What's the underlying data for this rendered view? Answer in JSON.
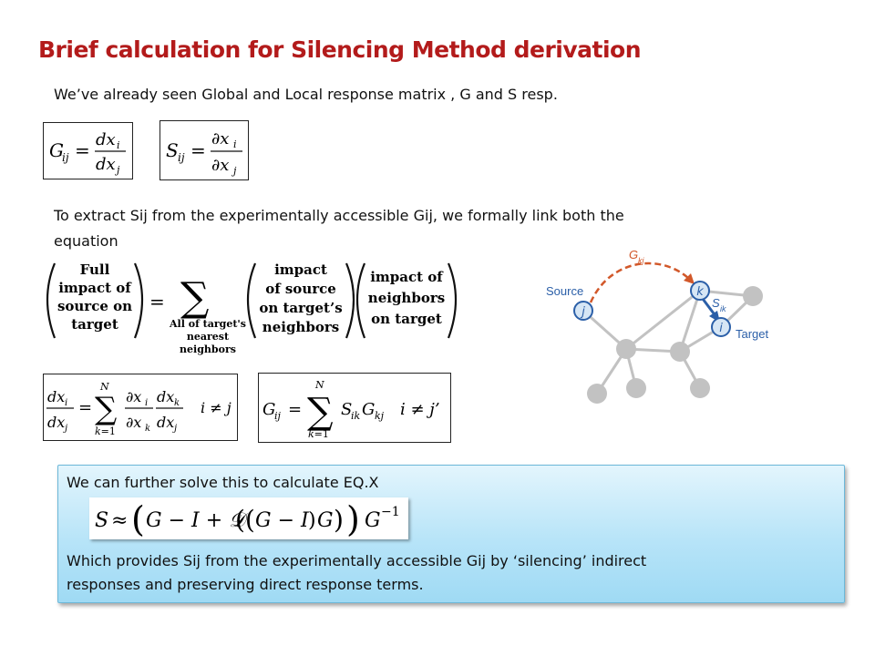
{
  "slide": {
    "title": "Brief calculation for Silencing Method derivation",
    "intro": "We’ve already seen Global and Local response matrix , G and S resp.",
    "extract_line1": "To extract Sij from the experimentally accessible Gij, we formally link both the",
    "extract_line2": "equation"
  },
  "word_equation": {
    "term_full": [
      "Full",
      "impact of",
      "source on",
      "target"
    ],
    "equals": "=",
    "sum_label": [
      "All of target's",
      "nearest",
      "neighbors"
    ],
    "term_source": [
      "impact",
      "of source",
      "on target’s",
      "neighbors"
    ],
    "term_neighbors": [
      "impact of",
      "neighbors",
      "on target"
    ]
  },
  "network": {
    "source_label": "Source",
    "target_label": "Target",
    "g_label": "G",
    "g_sub": "kj",
    "s_label": "S",
    "s_sub": "ik",
    "node_j": "j",
    "node_k": "k",
    "node_i": "i",
    "colors": {
      "path": "#d2582a",
      "arrow": "#2b5fa8",
      "node_fill": "#c2c2c2",
      "edge": "#c2c2c2"
    }
  },
  "callout": {
    "line1": "We can further solve this to calculate EQ.X",
    "desc_line1": "Which provides Sij from the experimentally accessible Gij by ‘silencing’ indirect",
    "desc_line2": "responses and preserving direct response terms."
  }
}
